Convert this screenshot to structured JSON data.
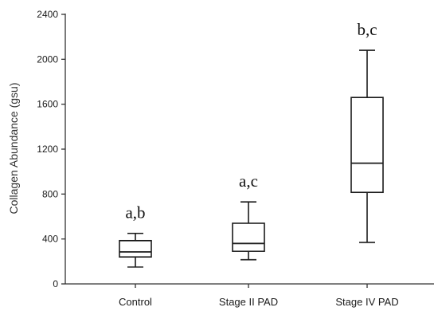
{
  "chart_data": {
    "type": "boxplot",
    "title": "",
    "xlabel": "",
    "ylabel": "Collagen Abundance (gsu)",
    "ylim": [
      0,
      2400
    ],
    "yticks": [
      0,
      400,
      800,
      1200,
      1600,
      2000,
      2400
    ],
    "categories": [
      "Control",
      "Stage II PAD",
      "Stage IV PAD"
    ],
    "boxes": [
      {
        "category": "Control",
        "min": 150,
        "q1": 240,
        "median": 285,
        "q3": 385,
        "max": 450,
        "annotation": "a,b"
      },
      {
        "category": "Stage II PAD",
        "min": 215,
        "q1": 290,
        "median": 360,
        "q3": 540,
        "max": 730,
        "annotation": "a,c"
      },
      {
        "category": "Stage IV PAD",
        "min": 370,
        "q1": 815,
        "median": 1075,
        "q3": 1660,
        "max": 2080,
        "annotation": "b,c"
      }
    ],
    "grid": false,
    "legend": "none"
  }
}
